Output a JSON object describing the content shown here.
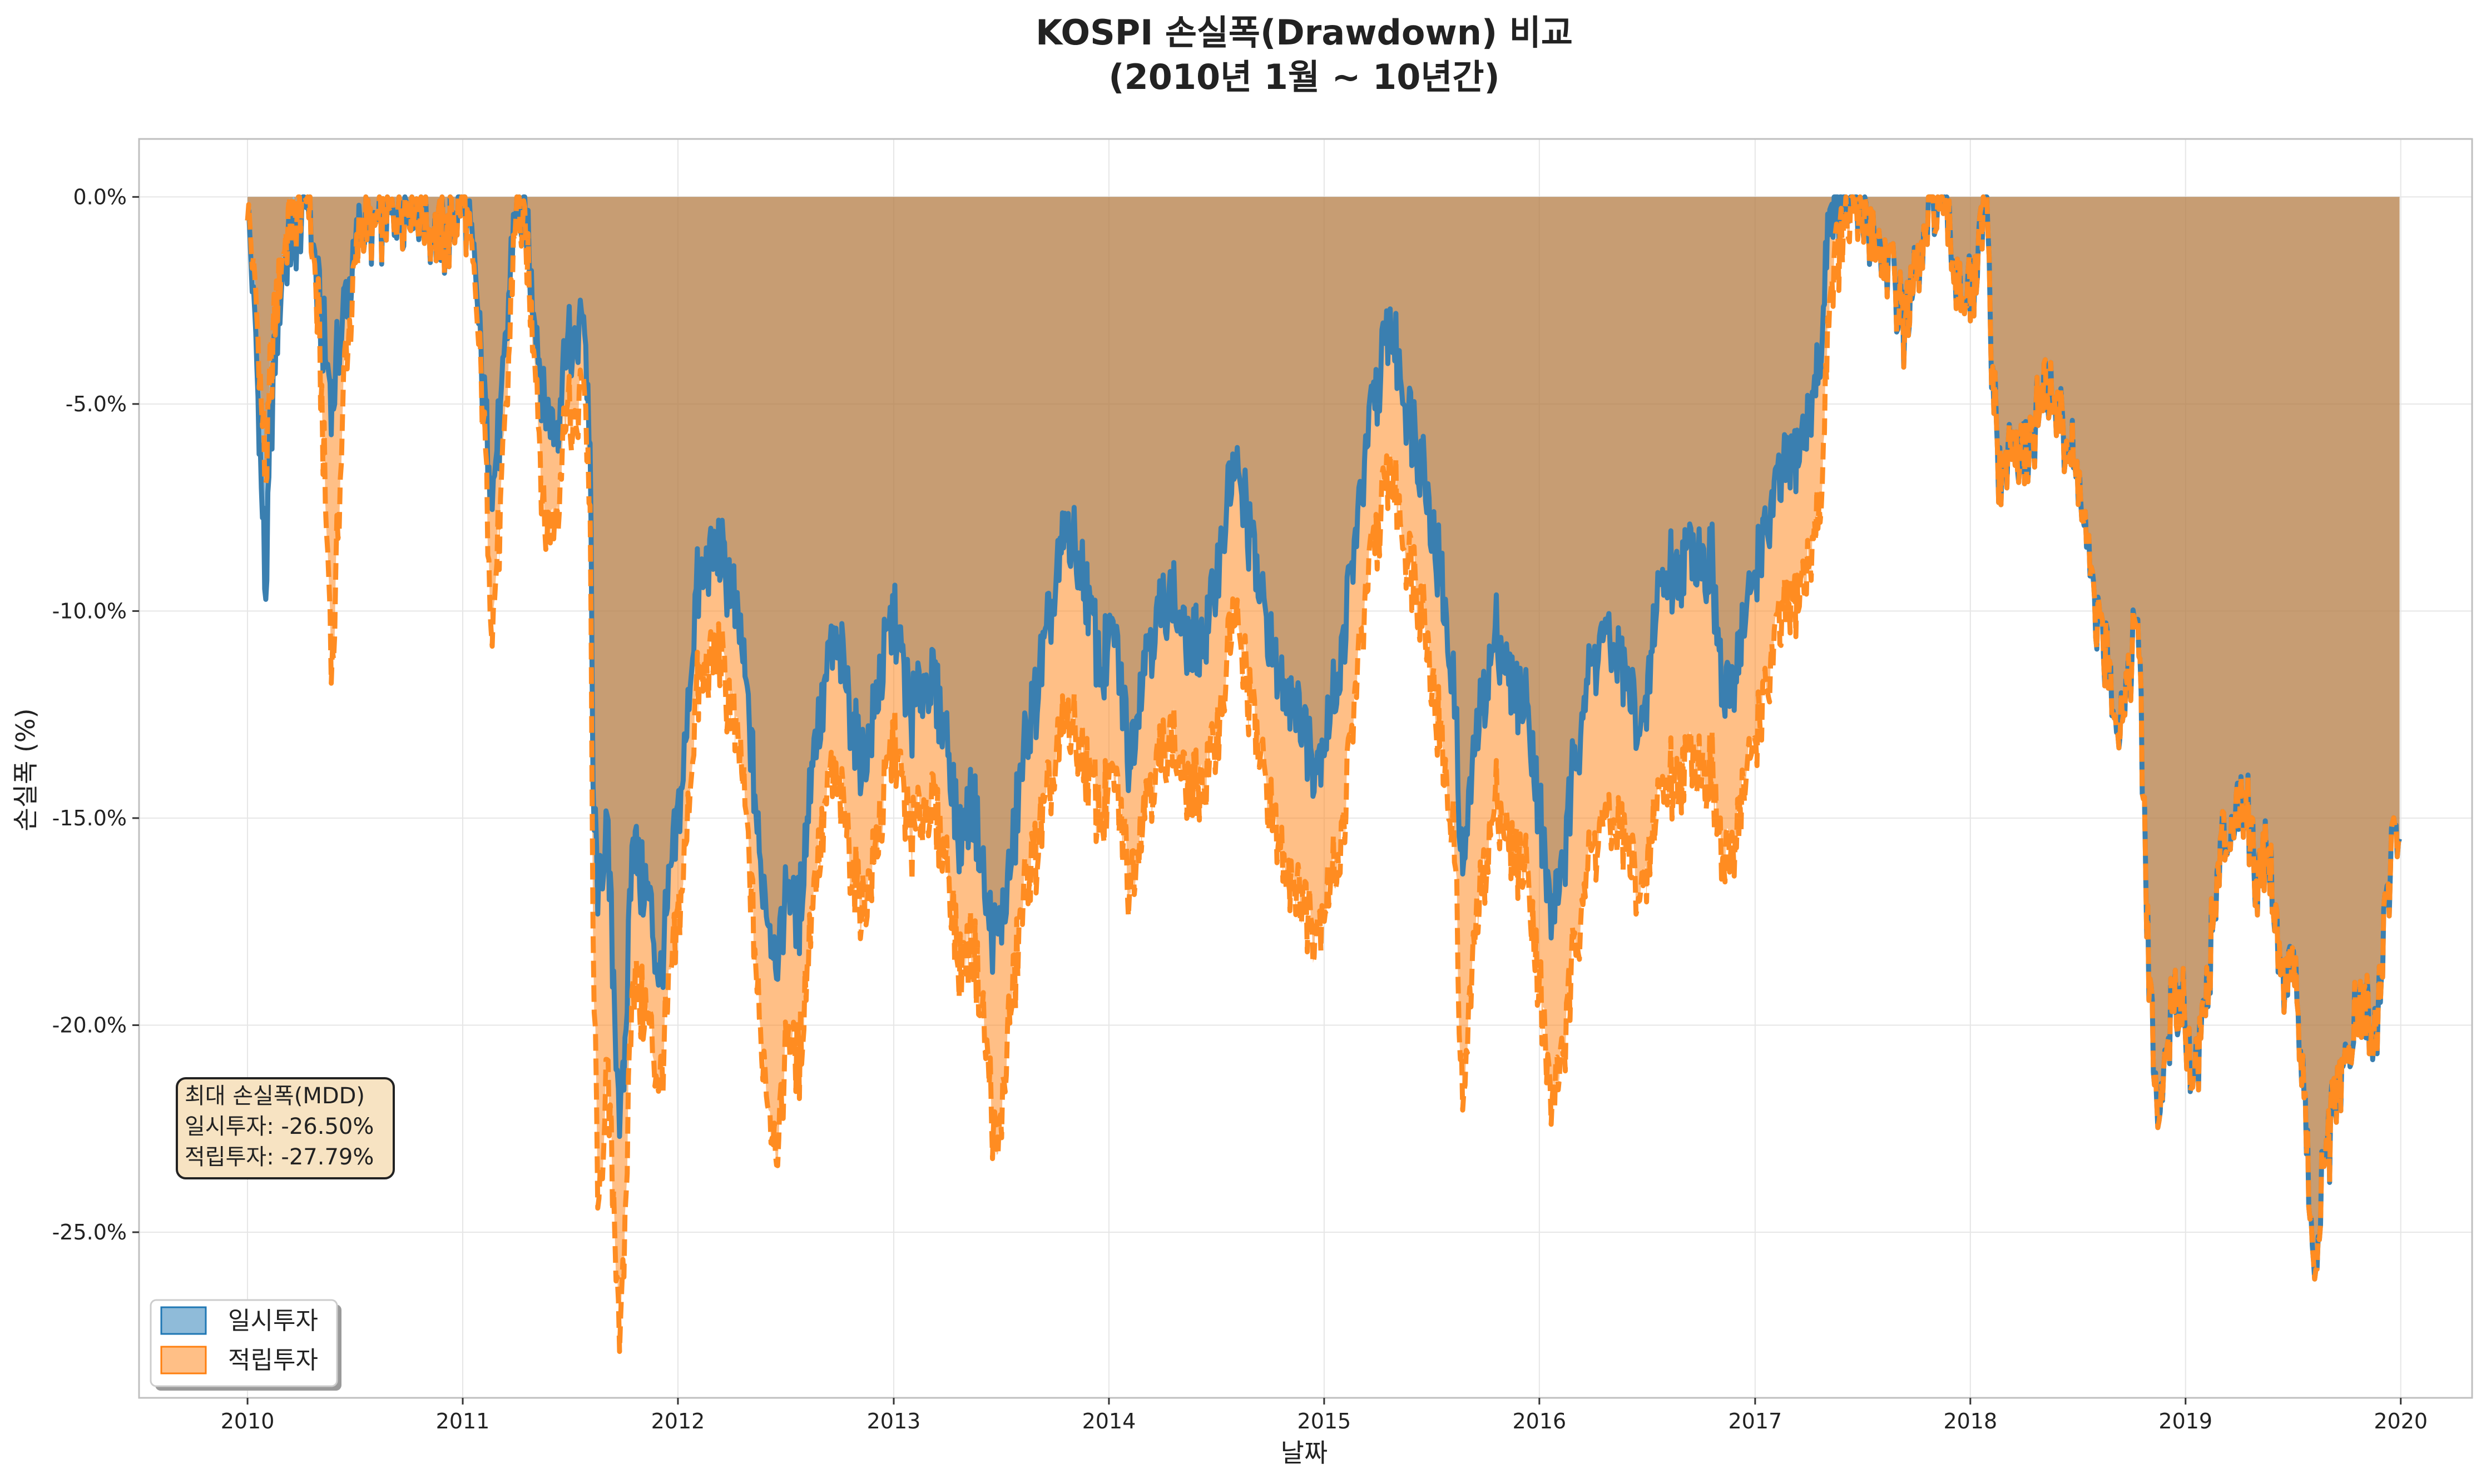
{
  "chart_data": {
    "type": "area",
    "title_line1": "KOSPI 손실폭(Drawdown) 비교",
    "title_line2": "(2010년 1월 ~ 10년간)",
    "xlabel": "날짜",
    "ylabel": "손실폭 (%)",
    "xlim": [
      "2009-07-01",
      "2020-05-01"
    ],
    "ylim": [
      -29.0,
      1.4
    ],
    "grid": true,
    "legend_position": "lower-left",
    "x_ticks": [
      "2010",
      "2011",
      "2012",
      "2013",
      "2014",
      "2015",
      "2016",
      "2017",
      "2018",
      "2019",
      "2020"
    ],
    "x_tick_dates": [
      "2010-01-01",
      "2011-01-01",
      "2012-01-01",
      "2013-01-01",
      "2014-01-01",
      "2015-01-01",
      "2016-01-01",
      "2017-01-01",
      "2018-01-01",
      "2019-01-01",
      "2020-01-01"
    ],
    "y_ticks": [
      0.0,
      -5.0,
      -10.0,
      -15.0,
      -20.0,
      -25.0
    ],
    "y_tick_labels": [
      "0.0%",
      "-5.0%",
      "-10.0%",
      "-15.0%",
      "-20.0%",
      "-25.0%"
    ],
    "annotation": {
      "line1": "최대 손실폭(MDD)",
      "line2": "일시투자: -26.50%",
      "line3": "적립투자: -27.79%"
    },
    "series": [
      {
        "name": "일시투자",
        "color": "#1f77b4",
        "line_style": "solid",
        "x": [
          "2010-01-01",
          "2010-01-15",
          "2010-02-01",
          "2010-02-08",
          "2010-02-15",
          "2010-03-01",
          "2010-03-15",
          "2010-04-01",
          "2010-04-15",
          "2010-05-01",
          "2010-05-25",
          "2010-06-15",
          "2010-07-01",
          "2010-07-15",
          "2010-08-01",
          "2010-09-01",
          "2010-10-01",
          "2010-11-01",
          "2010-12-01",
          "2011-01-01",
          "2011-01-20",
          "2011-02-05",
          "2011-02-20",
          "2011-03-10",
          "2011-03-20",
          "2011-04-01",
          "2011-04-20",
          "2011-05-05",
          "2011-05-20",
          "2011-06-10",
          "2011-06-25",
          "2011-07-10",
          "2011-07-25",
          "2011-08-05",
          "2011-08-10",
          "2011-08-20",
          "2011-09-01",
          "2011-09-10",
          "2011-09-20",
          "2011-09-26",
          "2011-10-05",
          "2011-10-15",
          "2011-10-30",
          "2011-11-15",
          "2011-12-01",
          "2011-12-20",
          "2012-01-10",
          "2012-02-01",
          "2012-02-20",
          "2012-03-10",
          "2012-04-01",
          "2012-04-20",
          "2012-05-05",
          "2012-05-18",
          "2012-06-05",
          "2012-06-20",
          "2012-07-05",
          "2012-07-25",
          "2012-08-15",
          "2012-09-01",
          "2012-09-15",
          "2012-10-05",
          "2012-10-25",
          "2012-11-15",
          "2012-12-10",
          "2013-01-01",
          "2013-02-01",
          "2013-03-01",
          "2013-04-01",
          "2013-04-20",
          "2013-05-15",
          "2013-06-10",
          "2013-06-25",
          "2013-07-15",
          "2013-08-15",
          "2013-09-15",
          "2013-10-20",
          "2013-11-15",
          "2013-12-20",
          "2014-01-10",
          "2014-02-05",
          "2014-03-01",
          "2014-04-01",
          "2014-04-15",
          "2014-05-15",
          "2014-06-15",
          "2014-07-10",
          "2014-07-30",
          "2014-08-20",
          "2014-09-15",
          "2014-10-15",
          "2014-11-10",
          "2014-12-15",
          "2015-01-05",
          "2015-02-01",
          "2015-03-01",
          "2015-03-20",
          "2015-04-23",
          "2015-05-20",
          "2015-06-20",
          "2015-07-20",
          "2015-08-10",
          "2015-08-24",
          "2015-09-15",
          "2015-10-20",
          "2015-11-10",
          "2015-12-15",
          "2016-01-21",
          "2016-02-12",
          "2016-03-15",
          "2016-04-20",
          "2016-05-20",
          "2016-06-27",
          "2016-07-20",
          "2016-08-15",
          "2016-09-20",
          "2016-10-20",
          "2016-11-09",
          "2016-12-10",
          "2017-01-10",
          "2017-02-10",
          "2017-03-15",
          "2017-04-10",
          "2017-04-25",
          "2017-05-04",
          "2017-05-15",
          "2017-06-10",
          "2017-07-10",
          "2017-08-11",
          "2017-09-10",
          "2017-10-10",
          "2017-11-03",
          "2017-11-20",
          "2017-12-10",
          "2018-01-05",
          "2018-01-29",
          "2018-02-06",
          "2018-02-20",
          "2018-03-10",
          "2018-04-01",
          "2018-04-20",
          "2018-05-10",
          "2018-05-25",
          "2018-06-15",
          "2018-07-05",
          "2018-07-25",
          "2018-08-15",
          "2018-09-10",
          "2018-09-28",
          "2018-10-12",
          "2018-10-29",
          "2018-11-15",
          "2018-12-05",
          "2018-12-26",
          "2019-01-15",
          "2019-02-10",
          "2019-03-01",
          "2019-03-20",
          "2019-04-15",
          "2019-05-01",
          "2019-05-20",
          "2019-06-15",
          "2019-07-05",
          "2019-07-25",
          "2019-08-06",
          "2019-08-20",
          "2019-09-10",
          "2019-09-25",
          "2019-10-15",
          "2019-11-01",
          "2019-11-20",
          "2019-12-05",
          "2019-12-20",
          "2019-12-30"
        ],
        "y": [
          0.0,
          -3.5,
          -9.8,
          -6.0,
          -4.0,
          -2.0,
          -1.0,
          -0.5,
          0.0,
          -2.5,
          -5.0,
          -2.5,
          -1.5,
          -0.5,
          -1.0,
          -0.5,
          0.0,
          -0.5,
          -1.0,
          0.0,
          -1.5,
          -4.5,
          -7.0,
          -5.0,
          -2.5,
          0.0,
          -1.0,
          -3.0,
          -5.0,
          -5.5,
          -3.5,
          -4.0,
          -2.5,
          -6.0,
          -14.5,
          -17.0,
          -15.0,
          -17.5,
          -21.0,
          -22.5,
          -20.0,
          -15.0,
          -16.5,
          -17.0,
          -19.0,
          -16.5,
          -14.0,
          -9.5,
          -9.0,
          -8.5,
          -9.5,
          -11.0,
          -13.5,
          -16.0,
          -17.5,
          -18.5,
          -16.5,
          -17.5,
          -13.5,
          -12.5,
          -11.0,
          -11.0,
          -13.0,
          -13.5,
          -11.5,
          -10.0,
          -12.5,
          -11.5,
          -13.0,
          -15.5,
          -14.5,
          -17.5,
          -18.0,
          -16.5,
          -13.0,
          -11.0,
          -8.0,
          -9.0,
          -11.5,
          -10.5,
          -13.5,
          -11.0,
          -10.0,
          -9.5,
          -11.0,
          -10.5,
          -8.5,
          -6.5,
          -7.5,
          -9.5,
          -11.5,
          -12.0,
          -13.5,
          -13.0,
          -11.0,
          -7.5,
          -5.5,
          -3.0,
          -5.0,
          -6.5,
          -9.5,
          -12.0,
          -16.5,
          -13.0,
          -10.5,
          -11.5,
          -12.5,
          -17.5,
          -16.0,
          -12.0,
          -10.5,
          -11.5,
          -13.0,
          -9.5,
          -9.0,
          -8.5,
          -9.0,
          -12.5,
          -10.5,
          -8.5,
          -7.0,
          -6.0,
          -5.0,
          -3.5,
          -0.5,
          0.0,
          0.0,
          -0.5,
          -1.5,
          -3.0,
          -1.5,
          0.0,
          -0.5,
          -2.0,
          -2.5,
          0.0,
          -4.0,
          -7.0,
          -6.0,
          -6.5,
          -5.5,
          -4.5,
          -5.0,
          -6.0,
          -7.0,
          -9.5,
          -11.0,
          -12.5,
          -11.5,
          -10.0,
          -18.0,
          -22.5,
          -20.0,
          -19.0,
          -21.5,
          -18.5,
          -16.0,
          -15.0,
          -14.5,
          -16.5,
          -15.5,
          -19.0,
          -18.5,
          -22.5,
          -26.5,
          -24.0,
          -22.0,
          -21.5,
          -20.0,
          -19.5,
          -20.5,
          -17.5,
          -15.5,
          -15.5
        ]
      },
      {
        "name": "적립투자",
        "color": "#ff7f0e",
        "line_style": "dashed",
        "x": [
          "2010-01-01",
          "2010-01-15",
          "2010-02-01",
          "2010-02-08",
          "2010-02-15",
          "2010-03-01",
          "2010-03-15",
          "2010-04-01",
          "2010-04-15",
          "2010-05-01",
          "2010-05-25",
          "2010-06-15",
          "2010-07-01",
          "2010-07-15",
          "2010-08-01",
          "2010-09-01",
          "2010-10-01",
          "2010-11-01",
          "2010-12-01",
          "2011-01-01",
          "2011-01-20",
          "2011-02-05",
          "2011-02-20",
          "2011-03-10",
          "2011-03-20",
          "2011-04-01",
          "2011-04-20",
          "2011-05-05",
          "2011-05-20",
          "2011-06-10",
          "2011-06-25",
          "2011-07-10",
          "2011-07-25",
          "2011-08-05",
          "2011-08-10",
          "2011-08-20",
          "2011-09-01",
          "2011-09-10",
          "2011-09-20",
          "2011-09-26",
          "2011-10-05",
          "2011-10-15",
          "2011-10-30",
          "2011-11-15",
          "2011-12-01",
          "2011-12-20",
          "2012-01-10",
          "2012-02-01",
          "2012-02-20",
          "2012-03-10",
          "2012-04-01",
          "2012-04-20",
          "2012-05-05",
          "2012-05-18",
          "2012-06-05",
          "2012-06-20",
          "2012-07-05",
          "2012-07-25",
          "2012-08-15",
          "2012-09-01",
          "2012-09-15",
          "2012-10-05",
          "2012-10-25",
          "2012-11-15",
          "2012-12-10",
          "2013-01-01",
          "2013-02-01",
          "2013-03-01",
          "2013-04-01",
          "2013-04-20",
          "2013-05-15",
          "2013-06-10",
          "2013-06-25",
          "2013-07-15",
          "2013-08-15",
          "2013-09-15",
          "2013-10-20",
          "2013-11-15",
          "2013-12-20",
          "2014-01-10",
          "2014-02-05",
          "2014-03-01",
          "2014-04-01",
          "2014-04-15",
          "2014-05-15",
          "2014-06-15",
          "2014-07-10",
          "2014-07-30",
          "2014-08-20",
          "2014-09-15",
          "2014-10-15",
          "2014-11-10",
          "2014-12-15",
          "2015-01-05",
          "2015-02-01",
          "2015-03-01",
          "2015-03-20",
          "2015-04-23",
          "2015-05-20",
          "2015-06-20",
          "2015-07-20",
          "2015-08-10",
          "2015-08-24",
          "2015-09-15",
          "2015-10-20",
          "2015-11-10",
          "2015-12-15",
          "2016-01-21",
          "2016-02-12",
          "2016-03-15",
          "2016-04-20",
          "2016-05-20",
          "2016-06-27",
          "2016-07-20",
          "2016-08-15",
          "2016-09-20",
          "2016-10-20",
          "2016-11-09",
          "2016-12-10",
          "2017-01-10",
          "2017-02-10",
          "2017-03-15",
          "2017-04-10",
          "2017-04-25",
          "2017-05-04",
          "2017-05-15",
          "2017-06-10",
          "2017-07-10",
          "2017-08-11",
          "2017-09-10",
          "2017-10-10",
          "2017-11-03",
          "2017-11-20",
          "2017-12-10",
          "2018-01-05",
          "2018-01-29",
          "2018-02-06",
          "2018-02-20",
          "2018-03-10",
          "2018-04-01",
          "2018-04-20",
          "2018-05-10",
          "2018-05-25",
          "2018-06-15",
          "2018-07-05",
          "2018-07-25",
          "2018-08-15",
          "2018-09-10",
          "2018-09-28",
          "2018-10-12",
          "2018-10-29",
          "2018-11-15",
          "2018-12-05",
          "2018-12-26",
          "2019-01-15",
          "2019-02-10",
          "2019-03-01",
          "2019-03-20",
          "2019-04-15",
          "2019-05-01",
          "2019-05-20",
          "2019-06-15",
          "2019-07-05",
          "2019-07-25",
          "2019-08-06",
          "2019-08-20",
          "2019-09-10",
          "2019-09-25",
          "2019-10-15",
          "2019-11-01",
          "2019-11-20",
          "2019-12-05",
          "2019-12-20",
          "2019-12-30"
        ],
        "y": [
          0.0,
          -2.5,
          -7.0,
          -4.5,
          -3.0,
          -1.5,
          -0.5,
          0.0,
          0.0,
          -3.0,
          -11.5,
          -4.0,
          -2.0,
          -0.5,
          -1.0,
          -0.5,
          0.0,
          -0.5,
          -1.0,
          0.0,
          -2.0,
          -5.0,
          -10.3,
          -7.0,
          -4.0,
          0.0,
          -1.5,
          -4.0,
          -8.0,
          -7.5,
          -5.0,
          -6.0,
          -4.0,
          -7.5,
          -18.0,
          -25.0,
          -21.0,
          -23.0,
          -26.0,
          -27.79,
          -24.0,
          -18.5,
          -19.5,
          -20.0,
          -21.5,
          -19.0,
          -16.5,
          -12.0,
          -11.5,
          -11.0,
          -12.5,
          -14.0,
          -17.0,
          -20.0,
          -22.0,
          -23.0,
          -20.0,
          -21.0,
          -17.0,
          -15.5,
          -14.0,
          -14.5,
          -16.5,
          -17.0,
          -15.0,
          -13.0,
          -15.5,
          -14.5,
          -16.0,
          -18.5,
          -18.0,
          -21.0,
          -23.5,
          -20.0,
          -16.5,
          -15.0,
          -12.5,
          -13.5,
          -15.0,
          -14.0,
          -16.5,
          -14.5,
          -13.5,
          -13.0,
          -14.5,
          -14.0,
          -12.5,
          -10.0,
          -11.5,
          -13.5,
          -15.5,
          -16.5,
          -17.5,
          -17.0,
          -15.5,
          -11.0,
          -9.0,
          -6.5,
          -8.5,
          -10.0,
          -13.5,
          -15.5,
          -22.2,
          -17.5,
          -14.5,
          -15.5,
          -16.5,
          -22.0,
          -20.5,
          -16.5,
          -15.0,
          -15.5,
          -17.0,
          -14.5,
          -14.0,
          -13.5,
          -14.0,
          -16.5,
          -14.5,
          -12.5,
          -10.5,
          -9.5,
          -8.5,
          -7.0,
          -3.0,
          -1.5,
          -0.5,
          -0.5,
          -1.5,
          -3.0,
          -1.5,
          0.0,
          -0.5,
          -2.0,
          -2.5,
          0.0,
          -4.0,
          -7.0,
          -6.0,
          -6.5,
          -5.5,
          -4.5,
          -5.0,
          -6.0,
          -7.0,
          -9.5,
          -11.0,
          -12.5,
          -11.5,
          -10.0,
          -18.0,
          -22.5,
          -20.0,
          -19.0,
          -21.5,
          -18.5,
          -16.0,
          -15.0,
          -14.5,
          -16.5,
          -15.5,
          -19.0,
          -18.5,
          -22.5,
          -26.5,
          -24.0,
          -22.0,
          -21.5,
          -20.0,
          -19.5,
          -20.5,
          -17.5,
          -15.5,
          -15.5
        ]
      }
    ]
  }
}
